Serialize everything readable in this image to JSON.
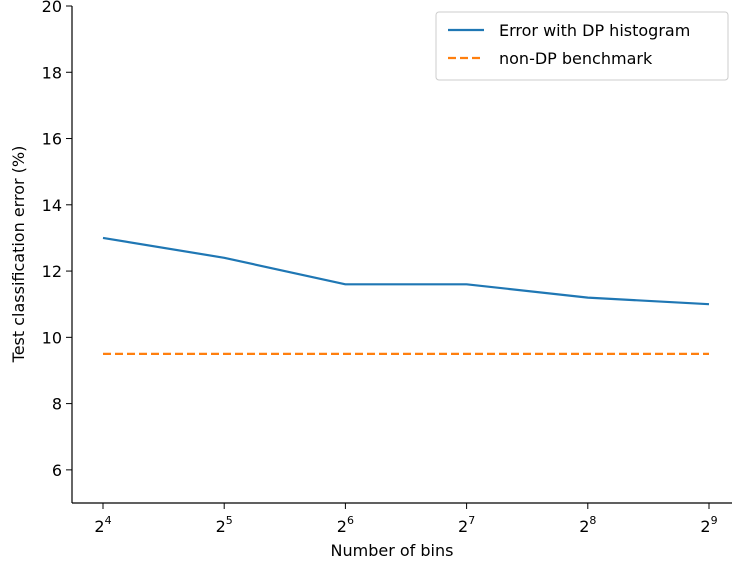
{
  "chart_data": {
    "type": "line",
    "title": "",
    "xlabel": "Number of bins",
    "ylabel": "Test classification error (%)",
    "x_scale": "log2",
    "x": [
      16,
      32,
      64,
      128,
      256,
      512
    ],
    "x_tick_labels": [
      {
        "base": "2",
        "exp": "4"
      },
      {
        "base": "2",
        "exp": "5"
      },
      {
        "base": "2",
        "exp": "6"
      },
      {
        "base": "2",
        "exp": "7"
      },
      {
        "base": "2",
        "exp": "8"
      },
      {
        "base": "2",
        "exp": "9"
      }
    ],
    "ylim": [
      5,
      20
    ],
    "y_ticks": [
      6,
      8,
      10,
      12,
      14,
      16,
      18,
      20
    ],
    "grid": false,
    "legend_position": "top-right",
    "series": [
      {
        "name": "Error with DP histogram",
        "style": "solid",
        "color": "#1f77b4",
        "values": [
          13.0,
          12.4,
          11.6,
          11.6,
          11.2,
          11.0
        ]
      },
      {
        "name": "non-DP benchmark",
        "style": "dashed",
        "color": "#ff7f0e",
        "values": [
          9.5,
          9.5,
          9.5,
          9.5,
          9.5,
          9.5
        ]
      }
    ]
  }
}
